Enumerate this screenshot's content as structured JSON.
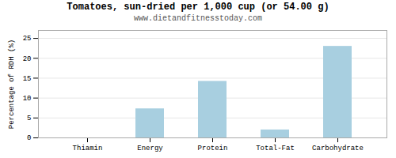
{
  "chart_data": {
    "type": "bar",
    "title": "Tomatoes, sun-dried per 1,000 cup (or 54.00 g)",
    "subtitle": "www.dietandfitnesstoday.com",
    "categories": [
      "Thiamin",
      "Energy",
      "Protein",
      "Total-Fat",
      "Carbohydrate"
    ],
    "values": [
      0.0,
      7.3,
      14.2,
      2.0,
      23.0
    ],
    "color": "#a8cfe0",
    "ylabel": "Percentage of RDH (%)",
    "ylim": [
      0,
      27
    ],
    "yticks": [
      0,
      5,
      10,
      15,
      20,
      25
    ],
    "grid": true
  }
}
